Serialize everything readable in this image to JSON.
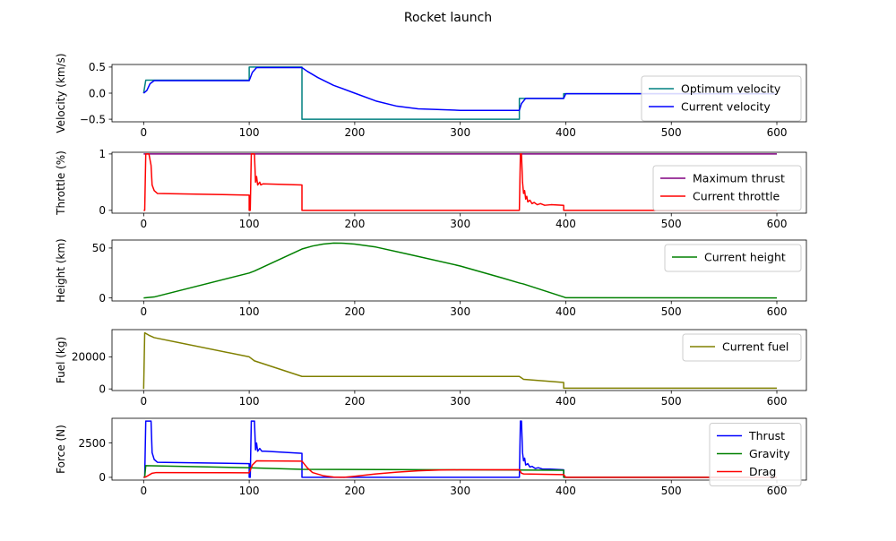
{
  "figure": {
    "title": "Rocket launch"
  },
  "chart_data": [
    {
      "type": "line",
      "ylabel": "Velocity (km/s)",
      "xlim": [
        -30,
        628
      ],
      "ylim": [
        -0.55,
        0.55
      ],
      "xticks": [
        0,
        100,
        200,
        300,
        400,
        500,
        600
      ],
      "yticks": [
        -0.5,
        0.0,
        0.5
      ],
      "ytick_labels": [
        "−0.5",
        "0.0",
        "0.5"
      ],
      "legend_loc": "right",
      "series": [
        {
          "name": "Optimum  velocity",
          "color": "#008080",
          "points": [
            [
              0,
              0
            ],
            [
              2,
              0.25
            ],
            [
              100,
              0.25
            ],
            [
              100,
              0.5
            ],
            [
              150,
              0.5
            ],
            [
              150,
              -0.5
            ],
            [
              356,
              -0.5
            ],
            [
              356,
              -0.1
            ],
            [
              398,
              -0.1
            ],
            [
              398,
              -0.01
            ],
            [
              600,
              -0.01
            ]
          ]
        },
        {
          "name": "Current velocity",
          "color": "#0000ff",
          "points": [
            [
              0,
              0
            ],
            [
              3,
              0.05
            ],
            [
              6,
              0.18
            ],
            [
              10,
              0.24
            ],
            [
              100,
              0.24
            ],
            [
              103,
              0.4
            ],
            [
              107,
              0.49
            ],
            [
              150,
              0.49
            ],
            [
              155,
              0.42
            ],
            [
              165,
              0.3
            ],
            [
              180,
              0.15
            ],
            [
              200,
              0.0
            ],
            [
              220,
              -0.15
            ],
            [
              240,
              -0.25
            ],
            [
              260,
              -0.3
            ],
            [
              300,
              -0.33
            ],
            [
              356,
              -0.33
            ],
            [
              358,
              -0.2
            ],
            [
              362,
              -0.1
            ],
            [
              398,
              -0.1
            ],
            [
              400,
              -0.01
            ],
            [
              600,
              -0.01
            ]
          ]
        }
      ]
    },
    {
      "type": "line",
      "ylabel": "Throttle (%)",
      "xlim": [
        -30,
        628
      ],
      "ylim": [
        -0.05,
        1.03
      ],
      "xticks": [
        0,
        100,
        200,
        300,
        400,
        500,
        600
      ],
      "yticks": [
        0,
        1
      ],
      "ytick_labels": [
        "0",
        "1"
      ],
      "legend_loc": "right",
      "series": [
        {
          "name": "Maximum thrust",
          "color": "#800080",
          "points": [
            [
              0,
              1
            ],
            [
              600,
              1
            ]
          ]
        },
        {
          "name": "Current throttle",
          "color": "#ff0000",
          "points": [
            [
              0,
              0
            ],
            [
              1,
              0
            ],
            [
              2,
              1
            ],
            [
              5,
              1
            ],
            [
              7,
              0.8
            ],
            [
              8,
              0.45
            ],
            [
              10,
              0.35
            ],
            [
              13,
              0.3
            ],
            [
              100,
              0.27
            ],
            [
              100,
              0
            ],
            [
              101,
              0
            ],
            [
              102,
              1
            ],
            [
              105,
              1
            ],
            [
              106,
              0.5
            ],
            [
              107,
              0.6
            ],
            [
              108,
              0.45
            ],
            [
              110,
              0.5
            ],
            [
              111,
              0.45
            ],
            [
              113,
              0.47
            ],
            [
              150,
              0.45
            ],
            [
              150,
              0
            ],
            [
              355,
              0
            ],
            [
              356,
              0
            ],
            [
              357,
              1
            ],
            [
              358,
              1
            ],
            [
              359,
              0.5
            ],
            [
              360,
              0.3
            ],
            [
              361,
              0.35
            ],
            [
              362,
              0.2
            ],
            [
              363,
              0.25
            ],
            [
              364,
              0.15
            ],
            [
              366,
              0.18
            ],
            [
              368,
              0.12
            ],
            [
              370,
              0.14
            ],
            [
              373,
              0.1
            ],
            [
              376,
              0.12
            ],
            [
              380,
              0.09
            ],
            [
              386,
              0.1
            ],
            [
              398,
              0.09
            ],
            [
              398,
              0
            ],
            [
              600,
              0
            ]
          ]
        }
      ]
    },
    {
      "type": "line",
      "ylabel": "Height (km)",
      "xlim": [
        -30,
        628
      ],
      "ylim": [
        -3,
        58
      ],
      "xticks": [
        0,
        100,
        200,
        300,
        400,
        500,
        600
      ],
      "yticks": [
        0,
        50
      ],
      "ytick_labels": [
        "0",
        "50"
      ],
      "legend_loc": "top-right",
      "series": [
        {
          "name": "Current height",
          "color": "#008000",
          "points": [
            [
              0,
              0
            ],
            [
              10,
              1
            ],
            [
              100,
              25
            ],
            [
              105,
              27
            ],
            [
              150,
              49
            ],
            [
              160,
              52
            ],
            [
              170,
              54
            ],
            [
              180,
              55
            ],
            [
              190,
              54.8
            ],
            [
              200,
              54
            ],
            [
              220,
              51
            ],
            [
              250,
              44
            ],
            [
              300,
              32
            ],
            [
              340,
              20
            ],
            [
              356,
              15
            ],
            [
              360,
              14
            ],
            [
              398,
              1
            ],
            [
              400,
              0.2
            ],
            [
              600,
              0
            ]
          ]
        }
      ]
    },
    {
      "type": "line",
      "ylabel": "Fuel (kg)",
      "xlim": [
        -30,
        628
      ],
      "ylim": [
        -1000,
        37000
      ],
      "xticks": [
        0,
        100,
        200,
        300,
        400,
        500,
        600
      ],
      "yticks": [
        0,
        20000
      ],
      "ytick_labels": [
        "0",
        "20000"
      ],
      "legend_loc": "top-right",
      "series": [
        {
          "name": "Current fuel",
          "color": "#808000",
          "points": [
            [
              0,
              0
            ],
            [
              1,
              35000
            ],
            [
              5,
              33500
            ],
            [
              10,
              32000
            ],
            [
              100,
              20000
            ],
            [
              105,
              17500
            ],
            [
              150,
              7800
            ],
            [
              356,
              7800
            ],
            [
              360,
              6000
            ],
            [
              398,
              4000
            ],
            [
              398,
              500
            ],
            [
              600,
              500
            ]
          ]
        }
      ]
    },
    {
      "type": "line",
      "ylabel": "Force (N)",
      "xlim": [
        -30,
        628
      ],
      "ylim": [
        -200,
        4300
      ],
      "xticks": [
        0,
        100,
        200,
        300,
        400,
        500,
        600
      ],
      "yticks": [
        0,
        2500
      ],
      "ytick_labels": [
        "0",
        "2500"
      ],
      "xtick_labels": [
        "0",
        "100",
        "200",
        "300",
        "400",
        "500",
        "600"
      ],
      "legend_loc": "right",
      "series": [
        {
          "name": "Thrust",
          "color": "#0000ff",
          "points": [
            [
              0,
              0
            ],
            [
              1,
              0
            ],
            [
              2,
              4100
            ],
            [
              7,
              4100
            ],
            [
              8,
              1800
            ],
            [
              10,
              1300
            ],
            [
              13,
              1100
            ],
            [
              100,
              1000
            ],
            [
              100,
              0
            ],
            [
              101,
              0
            ],
            [
              102,
              4100
            ],
            [
              105,
              4100
            ],
            [
              106,
              2000
            ],
            [
              107,
              2500
            ],
            [
              108,
              1900
            ],
            [
              110,
              2100
            ],
            [
              112,
              1900
            ],
            [
              115,
              1900
            ],
            [
              150,
              1750
            ],
            [
              150,
              0
            ],
            [
              356,
              0
            ],
            [
              357,
              4100
            ],
            [
              358,
              4100
            ],
            [
              359,
              1800
            ],
            [
              360,
              1200
            ],
            [
              361,
              1400
            ],
            [
              362,
              900
            ],
            [
              364,
              1000
            ],
            [
              366,
              750
            ],
            [
              368,
              800
            ],
            [
              371,
              650
            ],
            [
              374,
              700
            ],
            [
              378,
              600
            ],
            [
              385,
              600
            ],
            [
              398,
              550
            ],
            [
              398,
              0
            ],
            [
              600,
              0
            ]
          ]
        },
        {
          "name": "Gravity",
          "color": "#008000",
          "points": [
            [
              0,
              0
            ],
            [
              1,
              0
            ],
            [
              2,
              850
            ],
            [
              100,
              700
            ],
            [
              150,
              580
            ],
            [
              300,
              550
            ],
            [
              398,
              520
            ],
            [
              398,
              0
            ],
            [
              600,
              0
            ]
          ]
        },
        {
          "name": "Drag",
          "color": "#ff0000",
          "points": [
            [
              0,
              0
            ],
            [
              2,
              30
            ],
            [
              8,
              300
            ],
            [
              12,
              350
            ],
            [
              100,
              330
            ],
            [
              103,
              900
            ],
            [
              107,
              1200
            ],
            [
              150,
              1180
            ],
            [
              155,
              700
            ],
            [
              160,
              350
            ],
            [
              170,
              120
            ],
            [
              180,
              20
            ],
            [
              190,
              5
            ],
            [
              200,
              80
            ],
            [
              220,
              250
            ],
            [
              240,
              380
            ],
            [
              260,
              480
            ],
            [
              280,
              530
            ],
            [
              300,
              550
            ],
            [
              356,
              560
            ],
            [
              358,
              300
            ],
            [
              360,
              250
            ],
            [
              398,
              200
            ],
            [
              400,
              0
            ],
            [
              600,
              0
            ]
          ]
        }
      ]
    }
  ]
}
